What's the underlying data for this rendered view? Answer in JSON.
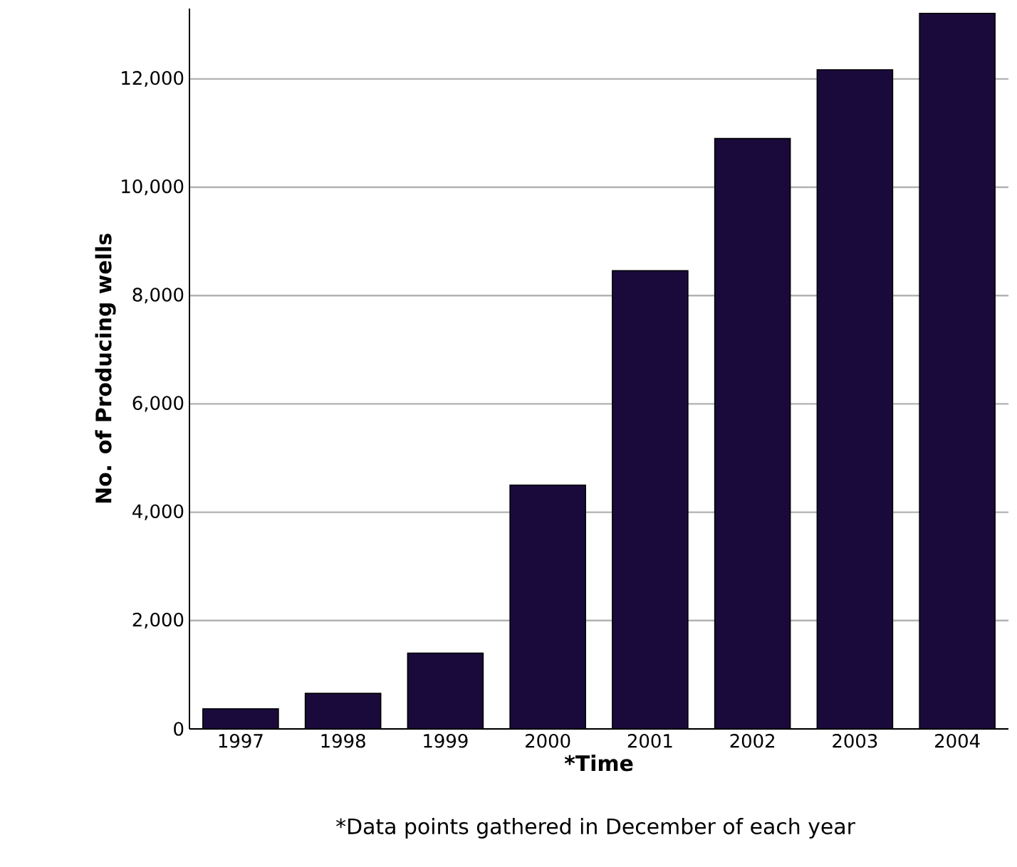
{
  "chart_data": {
    "type": "bar",
    "xlabel": "*Time",
    "ylabel": "No. of Producing wells",
    "annotations": [
      "*Data points gathered in December of each year"
    ],
    "categories": [
      "1997",
      "1998",
      "1999",
      "2000",
      "2001",
      "2002",
      "2003",
      "2004"
    ],
    "values": [
      370,
      655,
      1400,
      4500,
      8460,
      10900,
      12170,
      13210
    ],
    "color": "#1a0a3c",
    "ylim": [
      0,
      13300
    ],
    "yticks": [
      {
        "value": 0,
        "label": "0"
      },
      {
        "value": 2000,
        "label": "2,000"
      },
      {
        "value": 4000,
        "label": "4,000"
      },
      {
        "value": 6000,
        "label": "6,000"
      },
      {
        "value": 8000,
        "label": "8,000"
      },
      {
        "value": 10000,
        "label": "10,000"
      },
      {
        "value": 12000,
        "label": "12,000"
      }
    ],
    "grid": "y"
  }
}
